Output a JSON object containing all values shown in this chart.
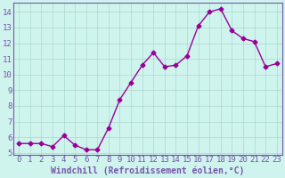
{
  "x": [
    0,
    1,
    2,
    3,
    4,
    5,
    6,
    7,
    8,
    9,
    10,
    11,
    12,
    13,
    14,
    15,
    16,
    17,
    18,
    19,
    20,
    21,
    22,
    23
  ],
  "y": [
    5.6,
    5.6,
    5.6,
    5.4,
    6.1,
    5.5,
    5.2,
    5.2,
    6.6,
    8.4,
    9.5,
    10.6,
    11.4,
    10.5,
    10.6,
    11.2,
    13.1,
    14.0,
    14.2,
    12.8,
    12.3,
    12.1,
    10.5,
    10.7
  ],
  "line_color": "#990099",
  "marker": "D",
  "markersize": 2.5,
  "linewidth": 1.0,
  "bg_color": "#cff4ee",
  "grid_color": "#aad8cc",
  "xlabel": "Windchill (Refroidissement éolien,°C)",
  "xlabel_fontsize": 7,
  "tick_fontsize": 6.5,
  "ylim": [
    4.9,
    14.6
  ],
  "xlim": [
    -0.5,
    23.5
  ],
  "yticks": [
    5,
    6,
    7,
    8,
    9,
    10,
    11,
    12,
    13,
    14
  ],
  "xticks": [
    0,
    1,
    2,
    3,
    4,
    5,
    6,
    7,
    8,
    9,
    10,
    11,
    12,
    13,
    14,
    15,
    16,
    17,
    18,
    19,
    20,
    21,
    22,
    23
  ],
  "spine_color": "#7755aa",
  "tick_color": "#7755aa",
  "label_color": "#7755aa"
}
